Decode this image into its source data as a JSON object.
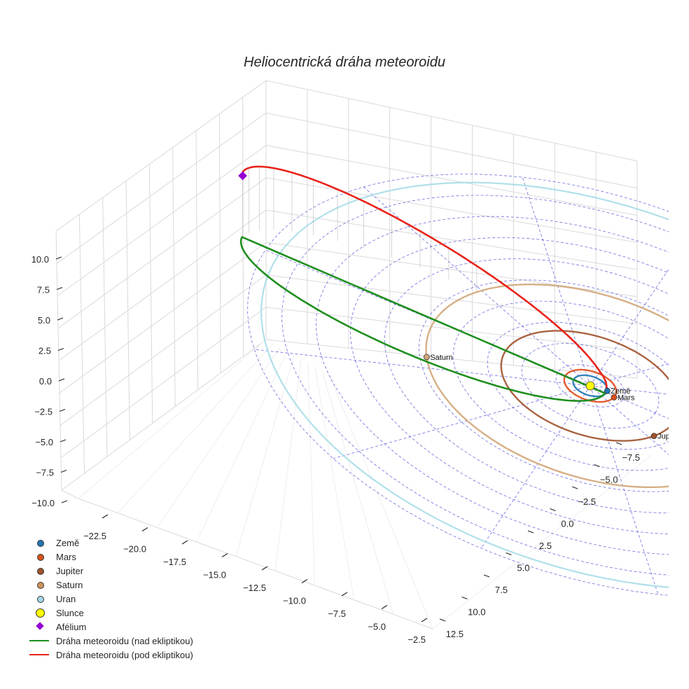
{
  "chart_data": {
    "type": "scatter3d",
    "title": "Heliocentrická dráha meteoroidu",
    "z_ticks": [
      "10.0",
      "7.5",
      "5.0",
      "2.5",
      "0.0",
      "−2.5",
      "−5.0",
      "−7.5",
      "−10.0"
    ],
    "x_ticks": [
      "−22.5",
      "−20.0",
      "−17.5",
      "−15.0",
      "−12.5",
      "−10.0",
      "−7.5",
      "−5.0",
      "−2.5"
    ],
    "y_ticks": [
      "12.5",
      "10.0",
      "7.5",
      "5.0",
      "2.5",
      "0.0",
      "−2.5",
      "−5.0",
      "−7.5"
    ],
    "z_range": [
      -10,
      10
    ],
    "x_range": [
      -22.5,
      -2.5
    ],
    "y_range": [
      -7.5,
      12.5
    ],
    "planets": [
      {
        "name": "Země",
        "label": "Země",
        "orbit_radius_au": 1.0,
        "color": "#1f77b4"
      },
      {
        "name": "Mars",
        "label": "Mars",
        "orbit_radius_au": 1.52,
        "color": "#e24a1a"
      },
      {
        "name": "Jupiter",
        "label": "Jupiter",
        "orbit_radius_au": 5.2,
        "color": "#a0522d"
      },
      {
        "name": "Saturn",
        "label": "Saturn",
        "orbit_radius_au": 9.58,
        "color": "#d2a679"
      },
      {
        "name": "Uran",
        "label": "Uran",
        "orbit_radius_au": 19.2,
        "color": "#a8dde8"
      }
    ],
    "meteoroid": {
      "aphelion_point": [
        -21.5,
        0.3,
        5.0
      ],
      "perihelion_distance_au": 0.9
    },
    "legend": [
      {
        "label": "Země",
        "kind": "dot",
        "color": "#1f77b4"
      },
      {
        "label": "Mars",
        "kind": "dot",
        "color": "#d9541a"
      },
      {
        "label": "Jupiter",
        "kind": "dot",
        "color": "#a0522d"
      },
      {
        "label": "Saturn",
        "kind": "dot",
        "color": "#d2935a"
      },
      {
        "label": "Uran",
        "kind": "dot",
        "color": "#9fd8ea"
      },
      {
        "label": "Slunce",
        "kind": "big",
        "color": "#ffff00"
      },
      {
        "label": "Afélium",
        "kind": "diamond",
        "color": "#9400d3"
      },
      {
        "label": "Dráha meteoroidu (nad ekliptikou)",
        "kind": "line",
        "color": "#1f8f1f"
      },
      {
        "label": "Dráha meteoroidu (pod ekliptikou)",
        "kind": "line",
        "color": "#e8231a"
      }
    ],
    "colors": {
      "grid": "#d9d9d9",
      "ecliptic_grid": "#3b3bd6",
      "green_path": "#1f8f1f",
      "red_path": "#e8231a",
      "sun": "#ffff00",
      "aphelion": "#9400d3"
    }
  }
}
